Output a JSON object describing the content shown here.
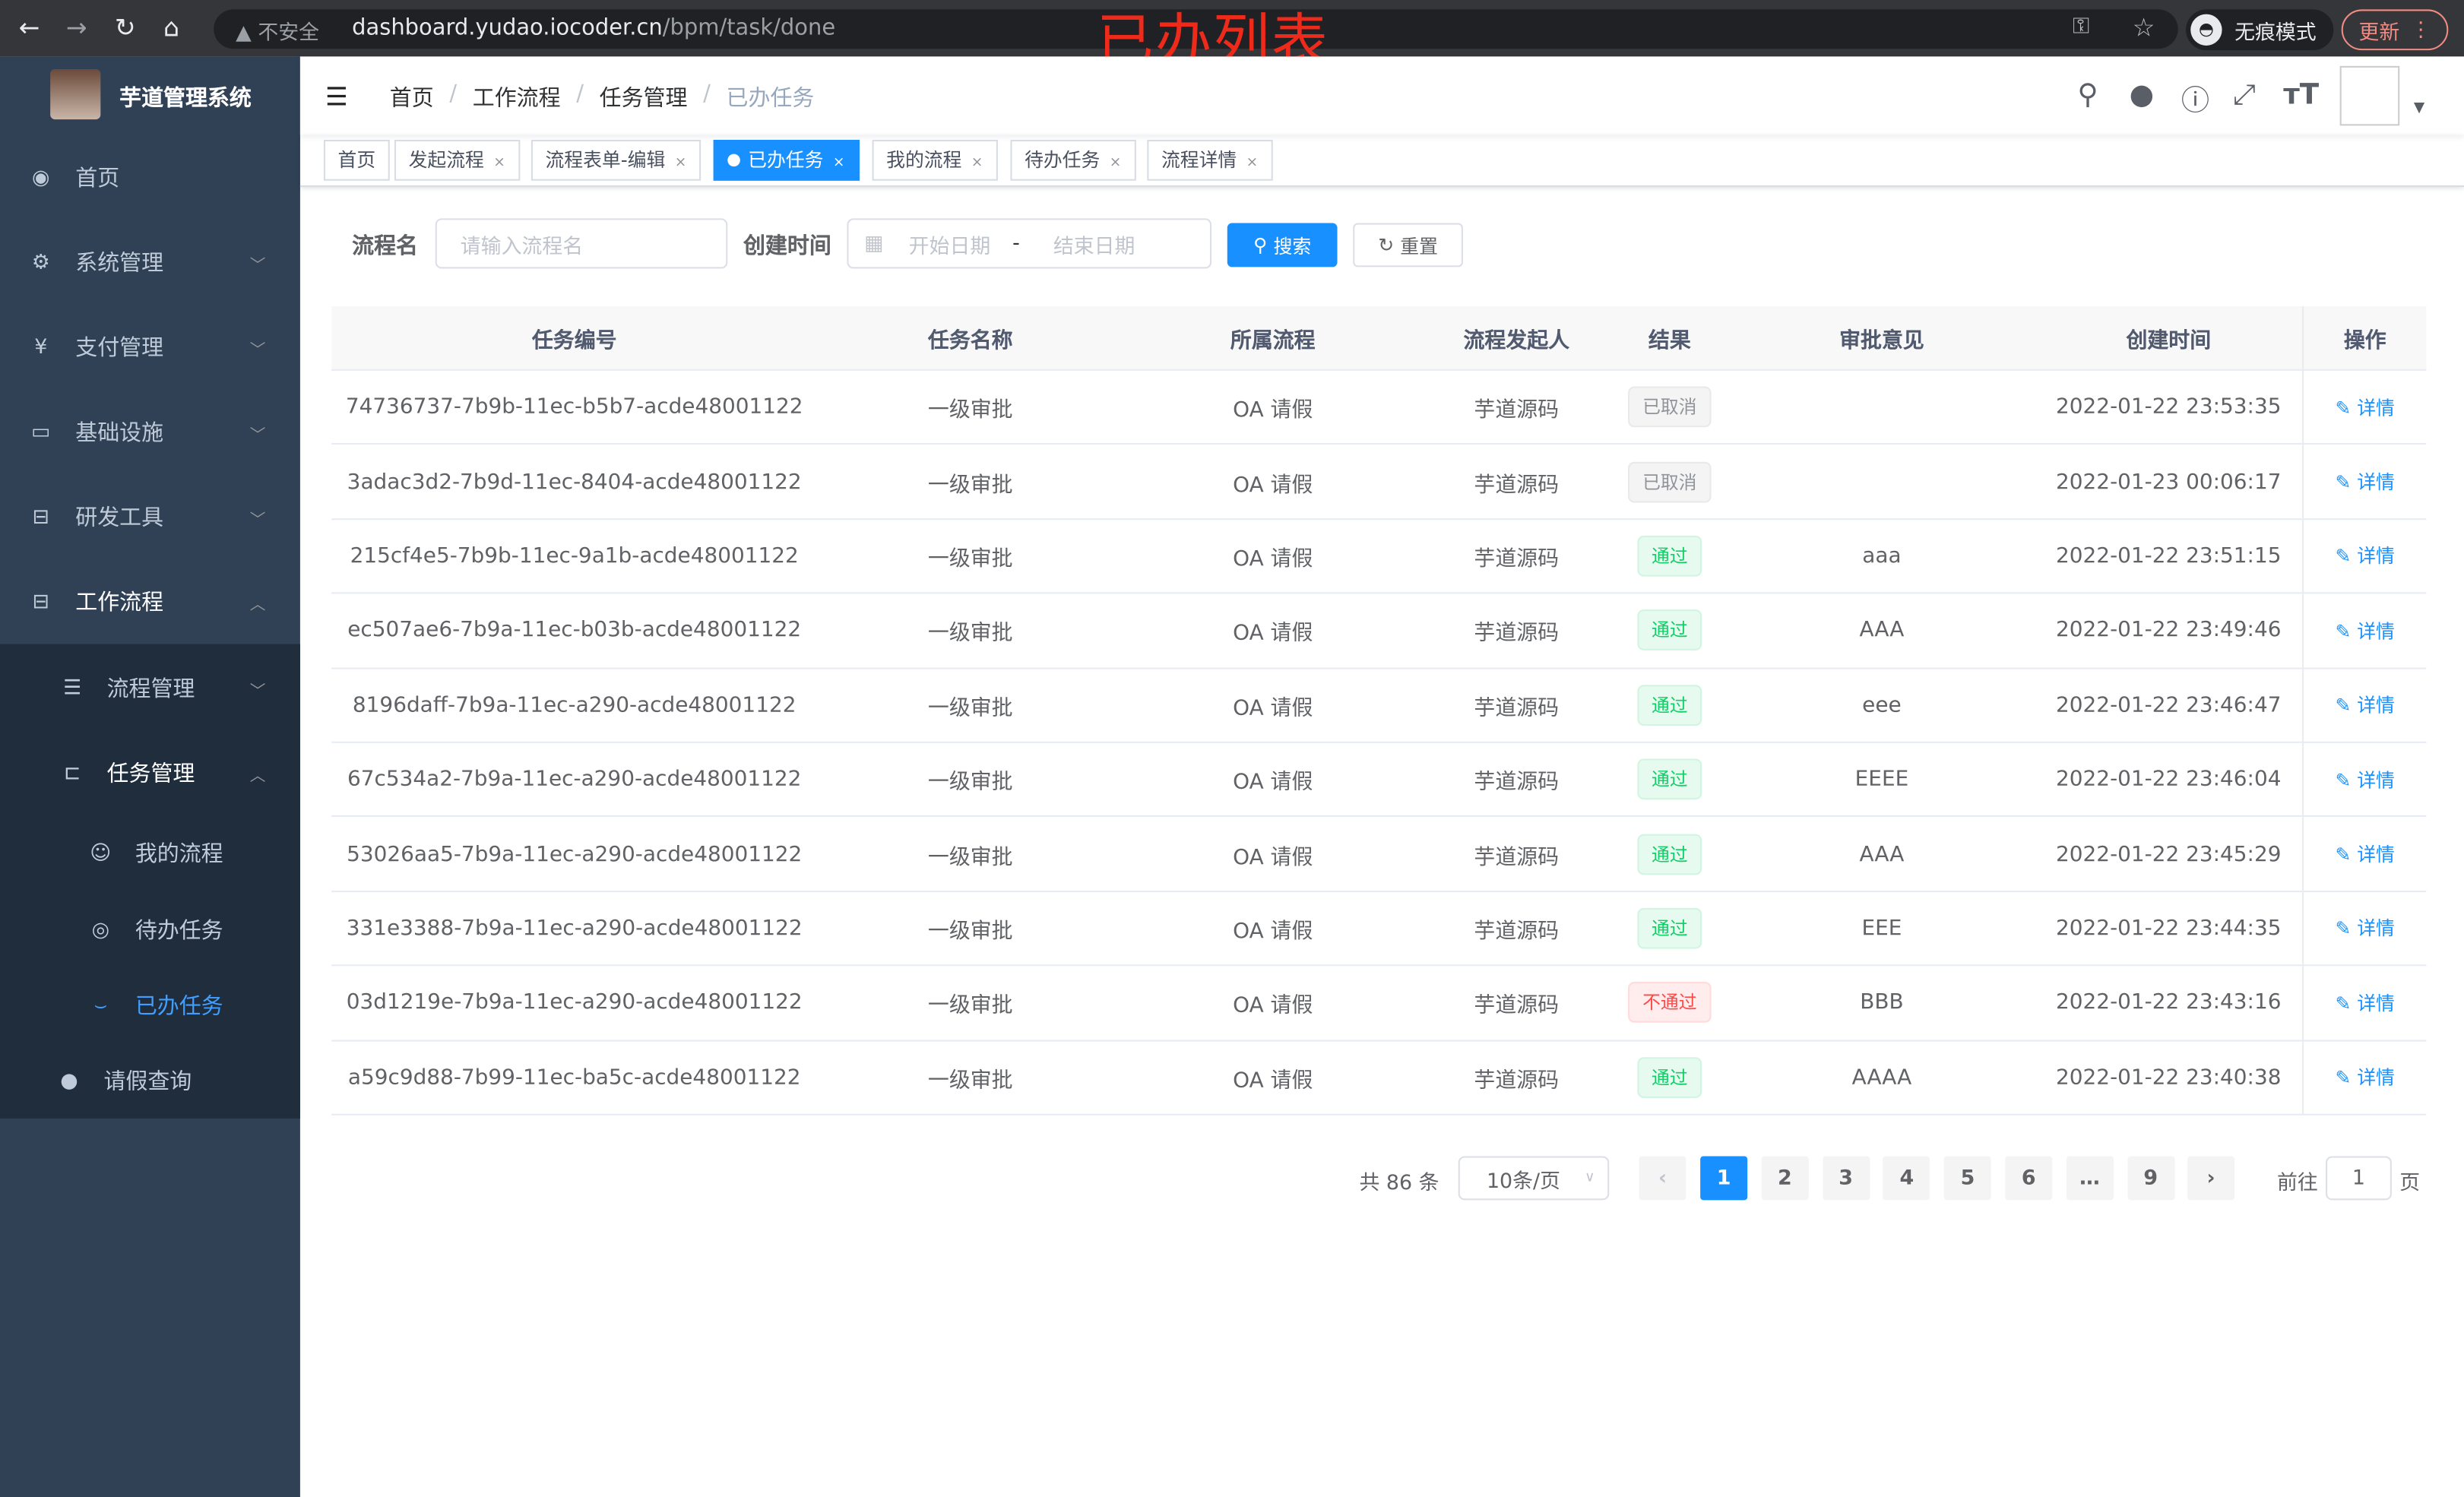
{
  "browser": {
    "insecure_label": "不安全",
    "url_host": "dashboard.yudao.iocoder.cn",
    "url_path": "/bpm/task/done",
    "incognito_label": "无痕模式",
    "update_label": "更新"
  },
  "annotation": "已办列表",
  "sidebar": {
    "title": "芋道管理系统",
    "items": [
      {
        "label": "首页",
        "icon": "dashboard-icon"
      },
      {
        "label": "系统管理",
        "icon": "gear-icon"
      },
      {
        "label": "支付管理",
        "icon": "yuan-icon"
      },
      {
        "label": "基础设施",
        "icon": "monitor-icon"
      },
      {
        "label": "研发工具",
        "icon": "toolbox-icon"
      },
      {
        "label": "工作流程",
        "icon": "briefcase-icon"
      },
      {
        "label": "流程管理",
        "icon": "list-icon"
      },
      {
        "label": "任务管理",
        "icon": "tree-icon"
      },
      {
        "label": "我的流程",
        "icon": "robot-icon"
      },
      {
        "label": "待办任务",
        "icon": "eye-icon"
      },
      {
        "label": "已办任务",
        "icon": "eye-closed-icon"
      },
      {
        "label": "请假查询",
        "icon": "user-icon"
      }
    ],
    "active": "已办任务"
  },
  "breadcrumb": [
    "首页",
    "工作流程",
    "任务管理",
    "已办任务"
  ],
  "tags": [
    {
      "label": "首页"
    },
    {
      "label": "发起流程"
    },
    {
      "label": "流程表单-编辑"
    },
    {
      "label": "已办任务",
      "active": true
    },
    {
      "label": "我的流程"
    },
    {
      "label": "待办任务"
    },
    {
      "label": "流程详情"
    }
  ],
  "search": {
    "name_label": "流程名",
    "name_placeholder": "请输入流程名",
    "time_label": "创建时间",
    "start_placeholder": "开始日期",
    "range_sep": "-",
    "end_placeholder": "结束日期",
    "search_label": "搜索",
    "reset_label": "重置"
  },
  "table": {
    "columns": [
      "任务编号",
      "任务名称",
      "所属流程",
      "流程发起人",
      "结果",
      "审批意见",
      "创建时间",
      "操作"
    ],
    "rows": [
      {
        "id": "74736737-7b9b-11ec-b5b7-acde48001122",
        "name": "一级审批",
        "process": "OA 请假",
        "starter": "芋道源码",
        "result": "已取消",
        "status": "cancel",
        "comment": "",
        "time": "2022-01-22 23:53:35",
        "action": "详情"
      },
      {
        "id": "3adac3d2-7b9d-11ec-8404-acde48001122",
        "name": "一级审批",
        "process": "OA 请假",
        "starter": "芋道源码",
        "result": "已取消",
        "status": "cancel",
        "comment": "",
        "time": "2022-01-23 00:06:17",
        "action": "详情"
      },
      {
        "id": "215cf4e5-7b9b-11ec-9a1b-acde48001122",
        "name": "一级审批",
        "process": "OA 请假",
        "starter": "芋道源码",
        "result": "通过",
        "status": "pass",
        "comment": "aaa",
        "time": "2022-01-22 23:51:15",
        "action": "详情"
      },
      {
        "id": "ec507ae6-7b9a-11ec-b03b-acde48001122",
        "name": "一级审批",
        "process": "OA 请假",
        "starter": "芋道源码",
        "result": "通过",
        "status": "pass",
        "comment": "AAA",
        "time": "2022-01-22 23:49:46",
        "action": "详情"
      },
      {
        "id": "8196daff-7b9a-11ec-a290-acde48001122",
        "name": "一级审批",
        "process": "OA 请假",
        "starter": "芋道源码",
        "result": "通过",
        "status": "pass",
        "comment": "eee",
        "time": "2022-01-22 23:46:47",
        "action": "详情"
      },
      {
        "id": "67c534a2-7b9a-11ec-a290-acde48001122",
        "name": "一级审批",
        "process": "OA 请假",
        "starter": "芋道源码",
        "result": "通过",
        "status": "pass",
        "comment": "EEEE",
        "time": "2022-01-22 23:46:04",
        "action": "详情"
      },
      {
        "id": "53026aa5-7b9a-11ec-a290-acde48001122",
        "name": "一级审批",
        "process": "OA 请假",
        "starter": "芋道源码",
        "result": "通过",
        "status": "pass",
        "comment": "AAA",
        "time": "2022-01-22 23:45:29",
        "action": "详情"
      },
      {
        "id": "331e3388-7b9a-11ec-a290-acde48001122",
        "name": "一级审批",
        "process": "OA 请假",
        "starter": "芋道源码",
        "result": "通过",
        "status": "pass",
        "comment": "EEE",
        "time": "2022-01-22 23:44:35",
        "action": "详情"
      },
      {
        "id": "03d1219e-7b9a-11ec-a290-acde48001122",
        "name": "一级审批",
        "process": "OA 请假",
        "starter": "芋道源码",
        "result": "不通过",
        "status": "reject",
        "comment": "BBB",
        "time": "2022-01-22 23:43:16",
        "action": "详情"
      },
      {
        "id": "a59c9d88-7b99-11ec-ba5c-acde48001122",
        "name": "一级审批",
        "process": "OA 请假",
        "starter": "芋道源码",
        "result": "通过",
        "status": "pass",
        "comment": "AAAA",
        "time": "2022-01-22 23:40:38",
        "action": "详情"
      }
    ]
  },
  "pagination": {
    "total_label": "共 86 条",
    "page_size": "10条/页",
    "pages": [
      "1",
      "2",
      "3",
      "4",
      "5",
      "6",
      "…",
      "9"
    ],
    "current": "1",
    "goto_label": "前往",
    "goto_value": "1",
    "page_suffix": "页"
  },
  "colors": {
    "primary": "#1890ff",
    "sidebar": "#304156",
    "pass": "#13ce66",
    "reject": "#ff4949",
    "annotation": "#ee2a1b"
  }
}
